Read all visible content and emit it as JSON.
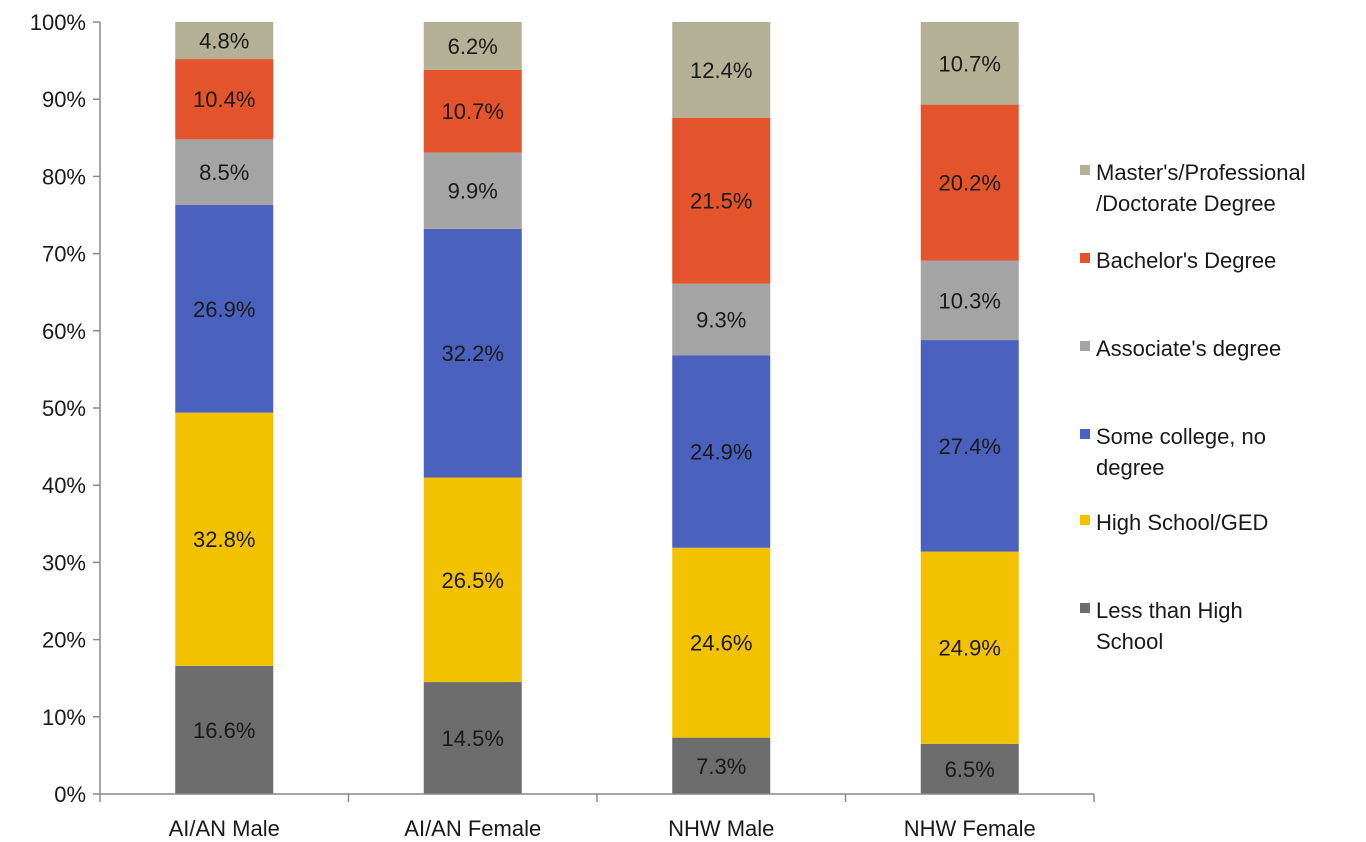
{
  "chart_data": {
    "type": "bar",
    "stacked": true,
    "categories": [
      "AI/AN Male",
      "AI/AN Female",
      "NHW Male",
      "NHW Female"
    ],
    "ylim": [
      0,
      100
    ],
    "y_ticks": [
      0,
      10,
      20,
      30,
      40,
      50,
      60,
      70,
      80,
      90,
      100
    ],
    "y_tick_labels": [
      "0%",
      "10%",
      "20%",
      "30%",
      "40%",
      "50%",
      "60%",
      "70%",
      "80%",
      "90%",
      "100%"
    ],
    "grid": false,
    "legend_position": "right",
    "series": [
      {
        "name": "Less than High School",
        "legend_lines": [
          "Less than High",
          "School"
        ],
        "color": "#6d6d6d",
        "values": [
          16.6,
          14.5,
          7.3,
          6.5
        ],
        "labels": [
          "16.6%",
          "14.5%",
          "7.3%",
          "6.5%"
        ]
      },
      {
        "name": "High School/GED",
        "legend_lines": [
          "High School/GED"
        ],
        "color": "#f2c200",
        "values": [
          32.8,
          26.5,
          24.6,
          24.9
        ],
        "labels": [
          "32.8%",
          "26.5%",
          "24.6%",
          "24.9%"
        ]
      },
      {
        "name": "Some college, no degree",
        "legend_lines": [
          "Some college, no",
          "degree"
        ],
        "color": "#4a62bd",
        "values": [
          26.9,
          32.2,
          24.9,
          27.4
        ],
        "labels": [
          "26.9%",
          "32.2%",
          "24.9%",
          "27.4%"
        ]
      },
      {
        "name": "Associate's degree",
        "legend_lines": [
          "Associate's degree"
        ],
        "color": "#a4a4a4",
        "values": [
          8.5,
          9.9,
          9.3,
          10.3
        ],
        "labels": [
          "8.5%",
          "9.9%",
          "9.3%",
          "10.3%"
        ]
      },
      {
        "name": "Bachelor's Degree",
        "legend_lines": [
          "Bachelor's Degree"
        ],
        "color": "#e4542c",
        "values": [
          10.4,
          10.7,
          21.5,
          20.2
        ],
        "labels": [
          "10.4%",
          "10.7%",
          "21.5%",
          "20.2%"
        ]
      },
      {
        "name": "Master's/Professional/Doctorate Degree",
        "legend_lines": [
          "Master's/Professional",
          "/Doctorate Degree"
        ],
        "color": "#b3b096",
        "values": [
          4.8,
          6.2,
          12.4,
          10.7
        ],
        "labels": [
          "4.8%",
          "6.2%",
          "12.4%",
          "10.7%"
        ]
      }
    ]
  }
}
